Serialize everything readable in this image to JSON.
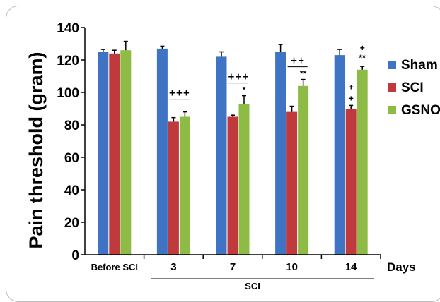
{
  "chart_data": {
    "type": "bar",
    "ylabel": "Pain threshold (gram)",
    "xlabel": "Days",
    "group_label": "SCI",
    "ylim": [
      0,
      140
    ],
    "yticks": [
      0,
      20,
      40,
      60,
      80,
      100,
      120,
      140
    ],
    "categories": [
      "Before SCI",
      "3",
      "7",
      "10",
      "14"
    ],
    "legend_position": "right",
    "series": [
      {
        "name": "Sham",
        "color": "#3f74c4",
        "values": [
          125,
          127,
          122,
          125,
          123
        ],
        "errors": [
          1.5,
          1.5,
          3,
          4.5,
          3.5
        ]
      },
      {
        "name": "SCI",
        "color": "#c0393d",
        "values": [
          124,
          82,
          85,
          88,
          90
        ],
        "errors": [
          2,
          2.5,
          1,
          3.5,
          2
        ]
      },
      {
        "name": "GSNO",
        "color": "#8dbb45",
        "values": [
          126,
          85,
          93,
          104,
          114
        ],
        "errors": [
          5.5,
          3,
          5,
          4,
          2
        ]
      }
    ],
    "annotations": [
      {
        "category": "3",
        "lines": [
          "+++"
        ]
      },
      {
        "category": "7",
        "lines": [
          "+++",
          "*"
        ]
      },
      {
        "category": "10",
        "lines": [
          "++",
          "**"
        ]
      },
      {
        "category": "14",
        "lines": [
          "+",
          "**",
          "+",
          "+"
        ]
      }
    ]
  }
}
